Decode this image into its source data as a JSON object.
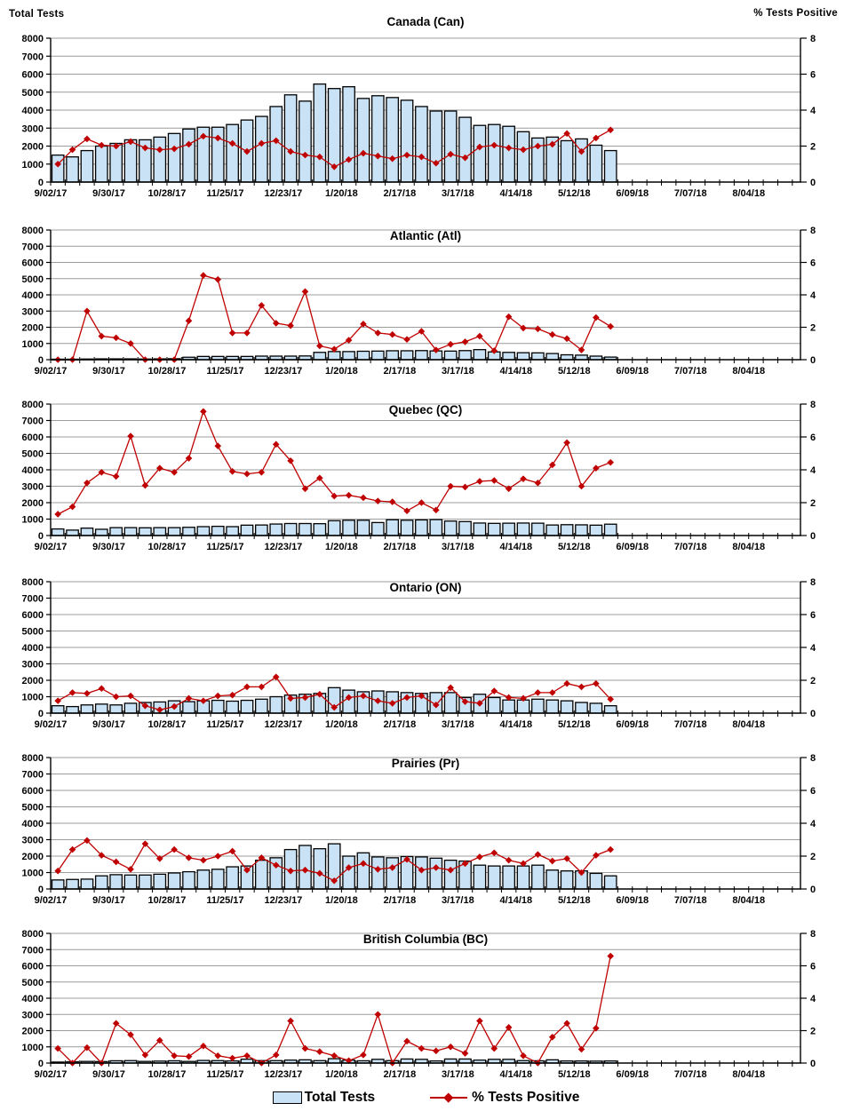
{
  "legend": {
    "bar_label": "Total Tests",
    "line_label": "% Tests Positive"
  },
  "colors": {
    "bar_fill": "#C9E2F5",
    "bar_stroke": "#000000",
    "line": "#C00000",
    "grid": "#9C9C9C",
    "axis": "#000000",
    "text": "#000000"
  },
  "chart_data": {
    "type": "bar+line small multiples (weekly laboratory tests and percent positive)",
    "left_axis": {
      "label": "Total Tests",
      "min": 0,
      "max": 8000,
      "tick_step": 1000,
      "tick_labels": [
        "0",
        "1000",
        "2000",
        "3000",
        "4000",
        "5000",
        "6000",
        "7000",
        "8000"
      ]
    },
    "right_axis": {
      "label": "% Tests Positive",
      "min": 0,
      "max": 8,
      "tick_step": 2,
      "tick_labels": [
        "0",
        "2",
        "4",
        "6",
        "8"
      ]
    },
    "x_tick_labels": [
      "9/02/17",
      "9/30/17",
      "10/28/17",
      "11/25/17",
      "12/23/17",
      "1/20/18",
      "2/17/18",
      "3/17/18",
      "4/14/18",
      "5/12/18",
      "6/09/18",
      "7/07/18",
      "8/04/18"
    ],
    "weeks": [
      "9/02/17",
      "9/09/17",
      "9/16/17",
      "9/23/17",
      "9/30/17",
      "10/07/17",
      "10/14/17",
      "10/21/17",
      "10/28/17",
      "11/04/17",
      "11/11/17",
      "11/18/17",
      "11/25/17",
      "12/02/17",
      "12/09/17",
      "12/16/17",
      "12/23/17",
      "12/30/17",
      "1/06/18",
      "1/13/18",
      "1/20/18",
      "1/27/18",
      "2/03/18",
      "2/10/18",
      "2/17/18",
      "2/24/18",
      "3/03/18",
      "3/10/18",
      "3/17/18",
      "3/24/18",
      "3/31/18",
      "4/07/18",
      "4/14/18",
      "4/21/18",
      "4/28/18",
      "5/05/18",
      "5/12/18",
      "5/19/18",
      "5/26/18"
    ],
    "charts": [
      {
        "title": "Canada (Can)",
        "total_tests": [
          1500,
          1400,
          1750,
          2000,
          2150,
          2350,
          2350,
          2500,
          2700,
          2950,
          3050,
          3050,
          3200,
          3450,
          3650,
          4200,
          4850,
          4500,
          5450,
          5200,
          5300,
          4650,
          4800,
          4700,
          4550,
          4200,
          3950,
          3950,
          3600,
          3150,
          3200,
          3100,
          2800,
          2450,
          2500,
          2300,
          2400,
          2050,
          1750
        ],
        "pct_positive": [
          1.0,
          1.8,
          2.4,
          2.05,
          2.0,
          2.25,
          1.9,
          1.8,
          1.85,
          2.1,
          2.55,
          2.45,
          2.15,
          1.7,
          2.15,
          2.3,
          1.7,
          1.5,
          1.4,
          0.85,
          1.25,
          1.6,
          1.45,
          1.3,
          1.5,
          1.4,
          1.05,
          1.55,
          1.35,
          1.95,
          2.05,
          1.9,
          1.8,
          2.0,
          2.1,
          2.7,
          1.7,
          2.45,
          2.9
        ]
      },
      {
        "title": "Atlantic (Atl)",
        "total_tests": [
          30,
          30,
          40,
          50,
          50,
          50,
          40,
          50,
          60,
          150,
          200,
          200,
          200,
          200,
          220,
          220,
          220,
          230,
          450,
          500,
          500,
          520,
          530,
          550,
          550,
          560,
          540,
          530,
          560,
          620,
          480,
          450,
          430,
          420,
          380,
          300,
          280,
          220,
          160
        ],
        "pct_positive": [
          0,
          0,
          3.0,
          1.45,
          1.35,
          1.0,
          0,
          0,
          0,
          2.4,
          5.2,
          4.95,
          1.65,
          1.65,
          3.35,
          2.25,
          2.1,
          4.2,
          0.85,
          0.65,
          1.2,
          2.2,
          1.65,
          1.55,
          1.25,
          1.75,
          0.6,
          0.95,
          1.1,
          1.45,
          0.55,
          2.65,
          1.95,
          1.9,
          1.55,
          1.3,
          0.6,
          2.6,
          2.05
        ]
      },
      {
        "title": "Quebec (QC)",
        "total_tests": [
          400,
          330,
          450,
          380,
          480,
          480,
          470,
          480,
          480,
          500,
          540,
          560,
          540,
          630,
          640,
          700,
          730,
          730,
          720,
          900,
          930,
          930,
          790,
          960,
          930,
          950,
          970,
          880,
          850,
          760,
          740,
          750,
          760,
          750,
          640,
          660,
          650,
          630,
          690
        ],
        "pct_positive": [
          1.3,
          1.75,
          3.2,
          3.85,
          3.6,
          6.05,
          3.05,
          4.1,
          3.85,
          4.7,
          7.55,
          5.45,
          3.9,
          3.75,
          3.85,
          5.55,
          4.55,
          2.85,
          3.5,
          2.4,
          2.45,
          2.3,
          2.1,
          2.05,
          1.5,
          2.0,
          1.55,
          3.0,
          2.95,
          3.3,
          3.35,
          2.85,
          3.45,
          3.2,
          4.3,
          5.65,
          3.0,
          4.1,
          4.45
        ]
      },
      {
        "title": "Ontario (ON)",
        "total_tests": [
          450,
          400,
          500,
          550,
          500,
          600,
          650,
          680,
          750,
          700,
          750,
          780,
          730,
          780,
          850,
          1000,
          1100,
          1150,
          1200,
          1550,
          1400,
          1300,
          1350,
          1300,
          1250,
          1200,
          1250,
          1250,
          950,
          1150,
          950,
          800,
          800,
          850,
          800,
          750,
          650,
          600,
          450
        ],
        "pct_positive": [
          0.75,
          1.25,
          1.2,
          1.5,
          1.0,
          1.05,
          0.45,
          0.2,
          0.4,
          0.9,
          0.75,
          1.05,
          1.1,
          1.6,
          1.6,
          2.2,
          0.9,
          0.95,
          1.15,
          0.35,
          0.95,
          1.05,
          0.75,
          0.6,
          0.95,
          1.05,
          0.5,
          1.55,
          0.7,
          0.6,
          1.35,
          0.95,
          0.9,
          1.25,
          1.25,
          1.8,
          1.6,
          1.8,
          0.85
        ]
      },
      {
        "title": "Prairies (Pr)",
        "total_tests": [
          550,
          580,
          600,
          800,
          870,
          850,
          850,
          900,
          975,
          1050,
          1150,
          1200,
          1350,
          1400,
          1750,
          1900,
          2400,
          2650,
          2450,
          2750,
          2000,
          2200,
          1950,
          1900,
          1975,
          1950,
          1875,
          1750,
          1700,
          1450,
          1400,
          1400,
          1400,
          1450,
          1150,
          1100,
          1100,
          950,
          800
        ],
        "pct_positive": [
          1.1,
          2.4,
          2.95,
          2.05,
          1.65,
          1.2,
          2.75,
          1.85,
          2.4,
          1.9,
          1.75,
          2.0,
          2.3,
          1.15,
          1.9,
          1.45,
          1.1,
          1.15,
          0.95,
          0.5,
          1.3,
          1.55,
          1.2,
          1.3,
          1.8,
          1.15,
          1.3,
          1.15,
          1.55,
          1.95,
          2.2,
          1.75,
          1.55,
          2.1,
          1.7,
          1.85,
          1.0,
          2.05,
          2.4
        ]
      },
      {
        "title": "British Columbia (BC)",
        "total_tests": [
          60,
          80,
          100,
          90,
          140,
          150,
          100,
          120,
          140,
          100,
          160,
          150,
          130,
          240,
          150,
          150,
          180,
          200,
          150,
          270,
          180,
          140,
          230,
          150,
          250,
          230,
          130,
          250,
          250,
          180,
          230,
          230,
          150,
          140,
          200,
          130,
          130,
          120,
          130
        ],
        "pct_positive": [
          0.9,
          0,
          0.95,
          0,
          2.45,
          1.75,
          0.5,
          1.4,
          0.45,
          0.4,
          1.05,
          0.45,
          0.3,
          0.45,
          0,
          0.5,
          2.6,
          0.9,
          0.7,
          0.45,
          0.15,
          0.5,
          3.0,
          0,
          1.35,
          0.9,
          0.75,
          1.0,
          0.6,
          2.6,
          0.9,
          2.2,
          0.45,
          0,
          1.6,
          2.45,
          0.85,
          2.15,
          6.6
        ]
      }
    ]
  }
}
